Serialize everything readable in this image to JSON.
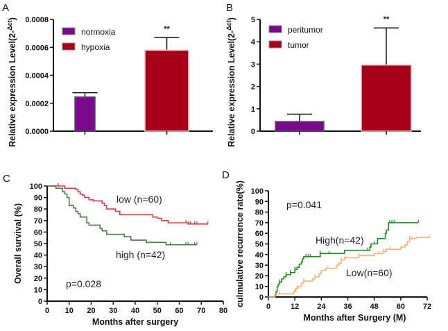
{
  "chart_data": [
    {
      "panel": "A",
      "type": "bar",
      "categories": [
        "normoxia",
        "hypoxia"
      ],
      "values": [
        0.000245,
        0.00058
      ],
      "error_upper": [
        0.000275,
        0.00067
      ],
      "colors": [
        "#7a0a8c",
        "#a8001a"
      ],
      "ylabel": "Relative expression Level(2-",
      "ylabel_superscript": "Δct",
      "ylabel_close": ")",
      "ylim": [
        0,
        0.0008
      ],
      "yticks": [
        "0.0000",
        "0.0002",
        "0.0004",
        "0.0006",
        "0.0008"
      ],
      "annotations": [
        {
          "category": "hypoxia",
          "text": "**"
        }
      ],
      "legend": [
        "normoxia",
        "hypoxia"
      ],
      "legend_position": "top-left"
    },
    {
      "panel": "B",
      "type": "bar",
      "categories": [
        "peritumor",
        "tumor"
      ],
      "values": [
        0.43,
        2.96
      ],
      "error_upper": [
        0.76,
        4.62
      ],
      "colors": [
        "#7a0a8c",
        "#a8001a"
      ],
      "ylabel": "Relative expression Level(2-",
      "ylabel_superscript": "Δct",
      "ylabel_close": ")",
      "ylim": [
        0,
        5
      ],
      "yticks": [
        "0",
        "1",
        "2",
        "3",
        "4",
        "5"
      ],
      "annotations": [
        {
          "category": "tumor",
          "text": "**"
        }
      ],
      "legend": [
        "peritumor",
        "tumor"
      ],
      "legend_position": "top-left"
    },
    {
      "panel": "C",
      "type": "line",
      "step": true,
      "xlabel": "Months after surgery",
      "ylabel": "Overall survival (%)",
      "xlim": [
        0,
        80
      ],
      "ylim": [
        0,
        100
      ],
      "xticks": [
        "0",
        "10",
        "20",
        "30",
        "40",
        "50",
        "60",
        "70",
        "80"
      ],
      "yticks": [
        "0",
        "10",
        "20",
        "30",
        "40",
        "50",
        "60",
        "70",
        "80",
        "90",
        "100"
      ],
      "pvalue": "p=0.028",
      "series": [
        {
          "name": "low (n=60)",
          "color": "#e8323c",
          "x": [
            0,
            5,
            8,
            13,
            14,
            15,
            16,
            17,
            19,
            21,
            25,
            26,
            27,
            31,
            33,
            48,
            50,
            52,
            55,
            64,
            73
          ],
          "y": [
            100,
            100,
            98,
            97,
            95,
            93,
            92,
            90,
            88,
            87,
            85,
            83,
            80,
            78,
            75,
            73,
            72,
            70,
            68,
            67,
            67
          ],
          "censored_x": [
            5,
            63,
            64,
            65,
            67,
            68,
            73
          ]
        },
        {
          "name": "high (n=42)",
          "color": "#4a7a4a",
          "x": [
            0,
            4,
            7,
            8,
            9,
            10,
            12,
            13,
            14,
            15,
            18,
            19,
            24,
            25,
            27,
            35,
            38,
            45,
            54,
            68
          ],
          "y": [
            100,
            98,
            95,
            93,
            90,
            83,
            81,
            78,
            76,
            73,
            68,
            66,
            63,
            61,
            58,
            56,
            53,
            51,
            49,
            49
          ],
          "censored_x": [
            56,
            63,
            64,
            67,
            68
          ]
        }
      ]
    },
    {
      "panel": "D",
      "type": "line",
      "step": true,
      "xlabel": "Months after Surgery (M)",
      "ylabel": "culmulative recurrence rate(%)",
      "xlim": [
        0,
        78
      ],
      "ylim": [
        0,
        100
      ],
      "xticks": [
        "0",
        "12",
        "24",
        "36",
        "48",
        "60",
        "72"
      ],
      "yticks": [
        "0",
        "10",
        "20",
        "30",
        "40",
        "50",
        "60",
        "70",
        "80",
        "90",
        "100"
      ],
      "pvalue": "p=0.041",
      "series": [
        {
          "name": "High(n=42)",
          "color": "#1e8a1e",
          "x": [
            0,
            3,
            3.5,
            4,
            4.5,
            5,
            6,
            7,
            8,
            10,
            12,
            13,
            14,
            15,
            15.5,
            16,
            23.5,
            34.5,
            46,
            46.5,
            49.5,
            53,
            53.5,
            54.5,
            68
          ],
          "y": [
            0,
            2,
            5,
            10,
            12,
            14,
            17,
            19,
            21,
            23,
            26,
            28,
            31,
            33,
            36,
            38,
            41,
            44,
            47,
            50,
            55,
            60,
            63,
            70,
            70
          ],
          "censored_x": [
            5,
            8,
            10,
            12,
            17,
            18,
            19,
            23.5,
            27.5,
            45,
            48,
            55,
            56,
            57,
            68
          ]
        },
        {
          "name": "Low(n=60)",
          "color": "#f5b27a",
          "x": [
            0,
            2,
            3,
            11,
            11.5,
            12.5,
            13.5,
            15,
            16,
            20,
            21,
            23,
            24,
            26,
            31,
            32,
            33,
            34.5,
            41,
            48,
            52,
            53.5,
            60,
            62,
            63,
            64,
            67,
            73
          ],
          "y": [
            0,
            0,
            3,
            3,
            5,
            8,
            10,
            13,
            15,
            17,
            19,
            22,
            25,
            27,
            30,
            32,
            35,
            37,
            39,
            41,
            43,
            45,
            47,
            49,
            52,
            55,
            56,
            56
          ],
          "censored_x": [
            5,
            12,
            13,
            16,
            21,
            27,
            33,
            35,
            41,
            50,
            52,
            55,
            64,
            65,
            73
          ]
        }
      ]
    }
  ],
  "panel_labels": [
    "A",
    "B",
    "C",
    "D"
  ]
}
